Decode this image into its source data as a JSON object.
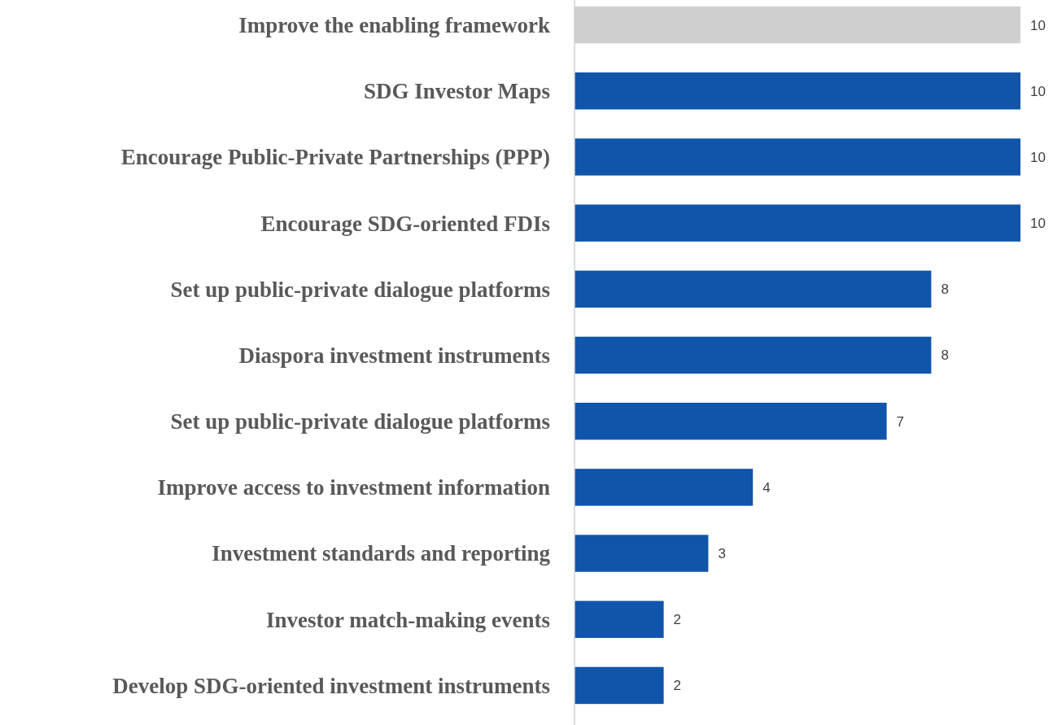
{
  "chart_data": {
    "type": "bar",
    "orientation": "horizontal",
    "categories": [
      "Improve the enabling framework",
      "SDG Investor Maps",
      "Encourage Public-Private Partnerships (PPP)",
      "Encourage SDG-oriented FDIs",
      "Set up public-private dialogue platforms",
      "Diaspora investment instruments",
      "Set up public-private dialogue platforms",
      "Improve access to investment information",
      "Investment standards and reporting",
      "Investor match-making events",
      "Develop SDG-oriented investment instruments"
    ],
    "values": [
      10,
      10,
      10,
      10,
      8,
      8,
      7,
      4,
      3,
      2,
      2
    ],
    "colors": [
      "#d0cfd0",
      "#1155aa",
      "#1155aa",
      "#1155aa",
      "#1155aa",
      "#1155aa",
      "#1155aa",
      "#1155aa",
      "#1155aa",
      "#1155aa",
      "#1155aa"
    ],
    "xlim": [
      0,
      10
    ],
    "data_labels": true,
    "tick_labels": "y"
  }
}
